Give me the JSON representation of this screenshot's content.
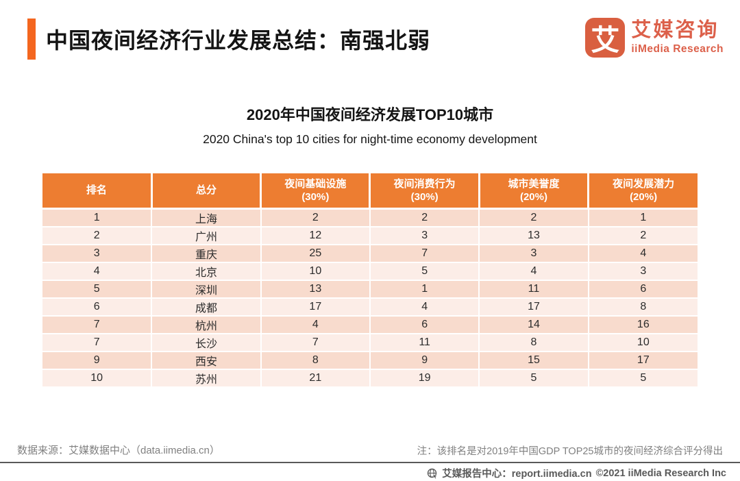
{
  "page_title": {
    "text": "中国夜间经济行业发展总结：南强北弱"
  },
  "logo": {
    "icon_char": "艾",
    "name_cn": "艾媒咨询",
    "name_en": "iiMedia Research"
  },
  "chart_data": {
    "type": "table",
    "title": "2020年中国夜间经济发展TOP10城市",
    "subtitle": "2020 China's top 10 cities for night-time economy development",
    "columns": [
      "排名",
      "总分",
      "夜间基础设施(30%)",
      "夜间消费行为(30%)",
      "城市美誉度(20%)",
      "夜间发展潜力(20%)"
    ],
    "rows": [
      [
        1,
        "上海",
        2,
        2,
        2,
        1
      ],
      [
        2,
        "广州",
        12,
        3,
        13,
        2
      ],
      [
        3,
        "重庆",
        25,
        7,
        3,
        4
      ],
      [
        4,
        "北京",
        10,
        5,
        4,
        3
      ],
      [
        5,
        "深圳",
        13,
        1,
        11,
        6
      ],
      [
        6,
        "成都",
        17,
        4,
        17,
        8
      ],
      [
        7,
        "杭州",
        4,
        6,
        14,
        16
      ],
      [
        7,
        "长沙",
        7,
        11,
        8,
        10
      ],
      [
        9,
        "西安",
        8,
        9,
        15,
        17
      ],
      [
        10,
        "苏州",
        21,
        19,
        5,
        5
      ]
    ]
  },
  "table_display": {
    "columns": [
      {
        "label": "排名",
        "sub": ""
      },
      {
        "label": "总分",
        "sub": ""
      },
      {
        "label": "夜间基础设施",
        "sub": "(30%)"
      },
      {
        "label": "夜间消费行为",
        "sub": "(30%)"
      },
      {
        "label": "城市美誉度",
        "sub": "(20%)"
      },
      {
        "label": "夜间发展潜力",
        "sub": "(20%)"
      }
    ]
  },
  "footer": {
    "source": "数据来源：艾媒数据中心（data.iimedia.cn）",
    "note": "注：该排名是对2019年中国GDP TOP25城市的夜间经济综合评分得出",
    "report_center": "艾媒报告中心：report.iimedia.cn",
    "copyright": "©2021  iiMedia Research  Inc"
  },
  "colors": {
    "accent_bar": "#F4661F",
    "table_header_bg": "#ED7D31",
    "row_odd_bg": "#F8DBCD",
    "row_even_bg": "#FCEDE7",
    "logo": "#D95F40",
    "footer_text": "#808080",
    "bottom_text": "#595959"
  }
}
